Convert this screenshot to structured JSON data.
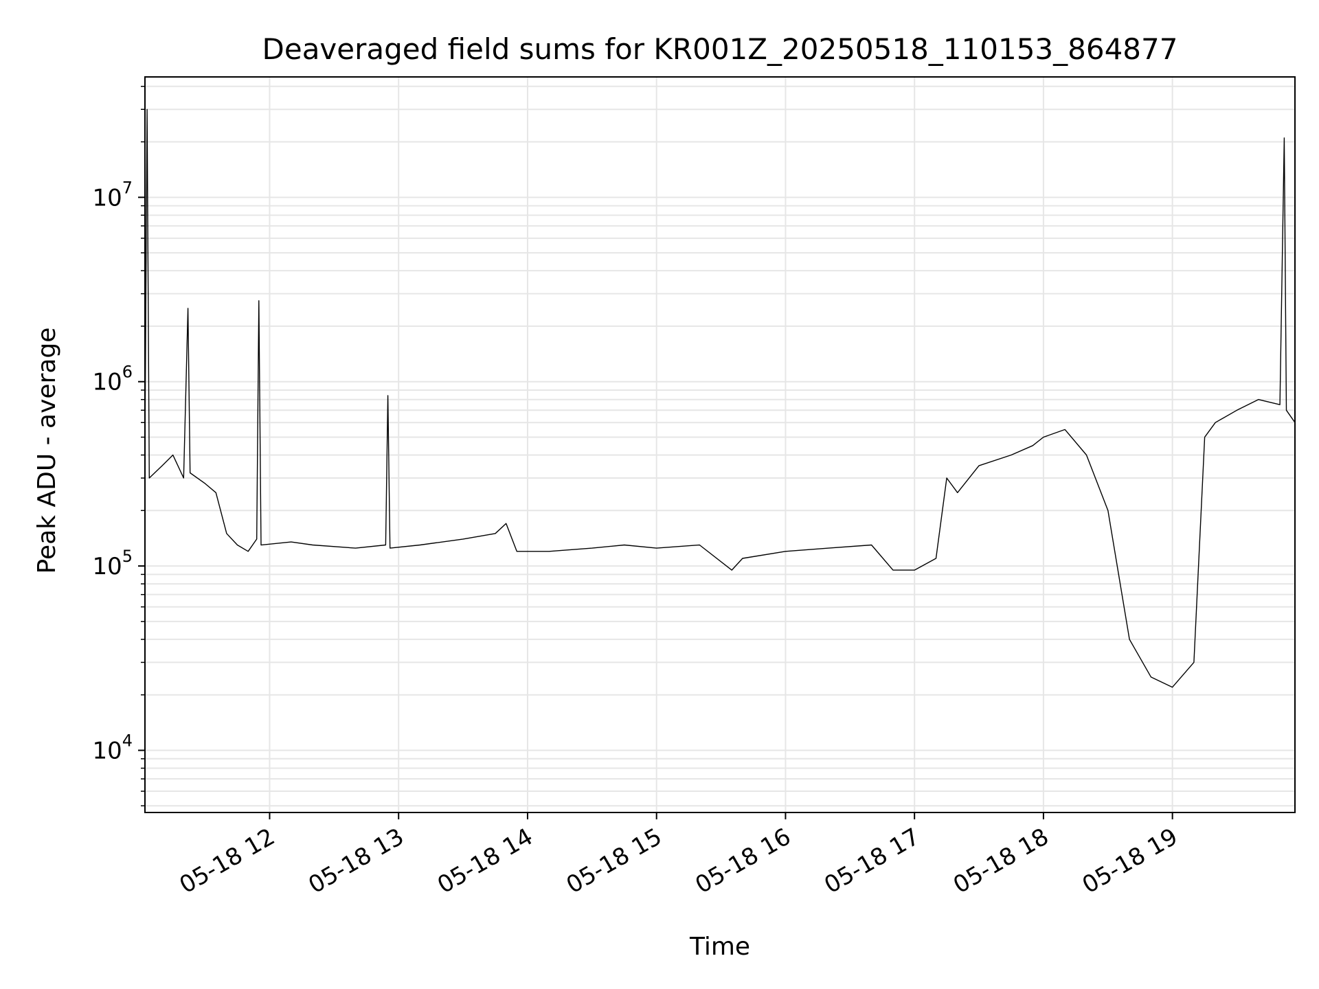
{
  "chart_data": {
    "type": "line",
    "title": "Deaveraged field sums for KR001Z_20250518_110153_864877",
    "xlabel": "Time",
    "ylabel": "Peak ADU - average",
    "yscale": "log",
    "grid": true,
    "xlim": [
      "2025-05-18 11:02",
      "2025-05-18 19:57"
    ],
    "ylim": [
      4600,
      45000000
    ],
    "x_ticks": [
      {
        "t": "2025-05-18 12:00",
        "label": "05-18 12"
      },
      {
        "t": "2025-05-18 13:00",
        "label": "05-18 13"
      },
      {
        "t": "2025-05-18 14:00",
        "label": "05-18 14"
      },
      {
        "t": "2025-05-18 15:00",
        "label": "05-18 15"
      },
      {
        "t": "2025-05-18 16:00",
        "label": "05-18 16"
      },
      {
        "t": "2025-05-18 17:00",
        "label": "05-18 17"
      },
      {
        "t": "2025-05-18 18:00",
        "label": "05-18 18"
      },
      {
        "t": "2025-05-18 19:00",
        "label": "05-18 19"
      }
    ],
    "y_ticks": [
      {
        "value": 10000,
        "base": "10",
        "exp": "4"
      },
      {
        "value": 100000,
        "base": "10",
        "exp": "5"
      },
      {
        "value": 1000000,
        "base": "10",
        "exp": "6"
      },
      {
        "value": 10000000,
        "base": "10",
        "exp": "7"
      }
    ],
    "series": [
      {
        "color": "#000000",
        "points": [
          [
            "2025-05-18 11:02",
            450000
          ],
          [
            "2025-05-18 11:03",
            30000000
          ],
          [
            "2025-05-18 11:04",
            300000
          ],
          [
            "2025-05-18 11:10",
            350000
          ],
          [
            "2025-05-18 11:15",
            400000
          ],
          [
            "2025-05-18 11:20",
            300000
          ],
          [
            "2025-05-18 11:22",
            2500000
          ],
          [
            "2025-05-18 11:23",
            320000
          ],
          [
            "2025-05-18 11:30",
            280000
          ],
          [
            "2025-05-18 11:35",
            250000
          ],
          [
            "2025-05-18 11:40",
            150000
          ],
          [
            "2025-05-18 11:45",
            130000
          ],
          [
            "2025-05-18 11:50",
            120000
          ],
          [
            "2025-05-18 11:54",
            140000
          ],
          [
            "2025-05-18 11:55",
            2750000
          ],
          [
            "2025-05-18 11:56",
            130000
          ],
          [
            "2025-05-18 12:10",
            135000
          ],
          [
            "2025-05-18 12:20",
            130000
          ],
          [
            "2025-05-18 12:40",
            125000
          ],
          [
            "2025-05-18 12:54",
            130000
          ],
          [
            "2025-05-18 12:55",
            840000
          ],
          [
            "2025-05-18 12:56",
            125000
          ],
          [
            "2025-05-18 13:10",
            130000
          ],
          [
            "2025-05-18 13:30",
            140000
          ],
          [
            "2025-05-18 13:45",
            150000
          ],
          [
            "2025-05-18 13:50",
            170000
          ],
          [
            "2025-05-18 13:55",
            120000
          ],
          [
            "2025-05-18 14:10",
            120000
          ],
          [
            "2025-05-18 14:30",
            125000
          ],
          [
            "2025-05-18 14:45",
            130000
          ],
          [
            "2025-05-18 15:00",
            125000
          ],
          [
            "2025-05-18 15:20",
            130000
          ],
          [
            "2025-05-18 15:35",
            95000
          ],
          [
            "2025-05-18 15:40",
            110000
          ],
          [
            "2025-05-18 16:00",
            120000
          ],
          [
            "2025-05-18 16:20",
            125000
          ],
          [
            "2025-05-18 16:40",
            130000
          ],
          [
            "2025-05-18 16:50",
            95000
          ],
          [
            "2025-05-18 17:00",
            95000
          ],
          [
            "2025-05-18 17:10",
            110000
          ],
          [
            "2025-05-18 17:15",
            300000
          ],
          [
            "2025-05-18 17:20",
            250000
          ],
          [
            "2025-05-18 17:30",
            350000
          ],
          [
            "2025-05-18 17:45",
            400000
          ],
          [
            "2025-05-18 17:55",
            450000
          ],
          [
            "2025-05-18 18:00",
            500000
          ],
          [
            "2025-05-18 18:10",
            550000
          ],
          [
            "2025-05-18 18:20",
            400000
          ],
          [
            "2025-05-18 18:30",
            200000
          ],
          [
            "2025-05-18 18:40",
            40000
          ],
          [
            "2025-05-18 18:50",
            25000
          ],
          [
            "2025-05-18 19:00",
            22000
          ],
          [
            "2025-05-18 19:10",
            30000
          ],
          [
            "2025-05-18 19:15",
            500000
          ],
          [
            "2025-05-18 19:20",
            600000
          ],
          [
            "2025-05-18 19:30",
            700000
          ],
          [
            "2025-05-18 19:40",
            800000
          ],
          [
            "2025-05-18 19:50",
            750000
          ],
          [
            "2025-05-18 19:52",
            21000000
          ],
          [
            "2025-05-18 19:53",
            700000
          ],
          [
            "2025-05-18 19:57",
            600000
          ]
        ]
      }
    ]
  }
}
